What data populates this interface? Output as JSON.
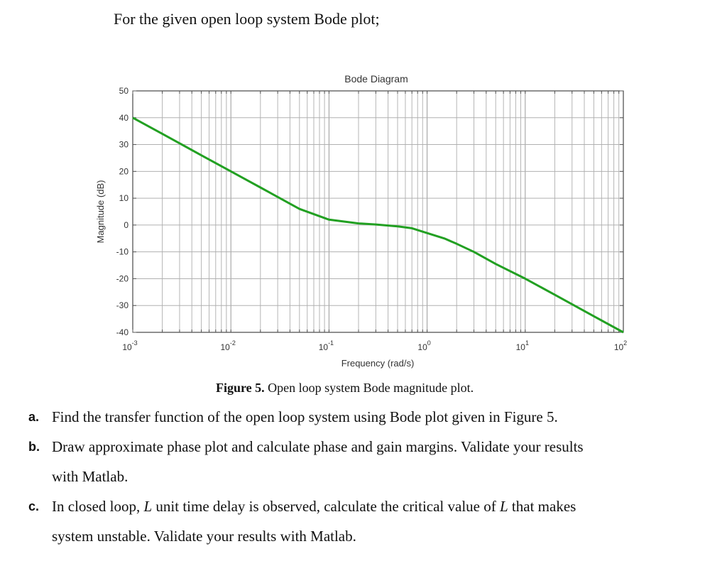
{
  "intro_text": "For the given open loop system Bode plot;",
  "chart_data": {
    "type": "line",
    "title": "Bode Diagram",
    "xlabel": "Frequency  (rad/s)",
    "ylabel": "Magnitude (dB)",
    "x_scale": "log",
    "xlim": [
      0.001,
      100
    ],
    "ylim": [
      -40,
      50
    ],
    "grid": true,
    "x_ticks": [
      {
        "value": 0.001,
        "base": "10",
        "exp": "-3"
      },
      {
        "value": 0.01,
        "base": "10",
        "exp": "-2"
      },
      {
        "value": 0.1,
        "base": "10",
        "exp": "-1"
      },
      {
        "value": 1,
        "base": "10",
        "exp": "0"
      },
      {
        "value": 10,
        "base": "10",
        "exp": "1"
      },
      {
        "value": 100,
        "base": "10",
        "exp": "2"
      }
    ],
    "y_ticks": [
      50,
      40,
      30,
      20,
      10,
      0,
      -10,
      -20,
      -30,
      -40
    ],
    "series": [
      {
        "color": "#22a022",
        "x": [
          0.001,
          0.002,
          0.005,
          0.01,
          0.02,
          0.05,
          0.1,
          0.2,
          0.3,
          0.5,
          0.7,
          1,
          1.5,
          2,
          3,
          5,
          10,
          20,
          50,
          100
        ],
        "y": [
          40,
          34,
          26,
          20,
          14,
          6,
          2,
          0.6,
          0.2,
          -0.5,
          -1.2,
          -3,
          -5,
          -7,
          -10,
          -14.5,
          -20,
          -26,
          -34,
          -40
        ]
      }
    ]
  },
  "caption": {
    "bold": "Figure 5.",
    "text": " Open loop system Bode magnitude plot."
  },
  "questions": [
    {
      "label": "a.",
      "text": "Find the transfer function of the open loop system using Bode plot given in Figure 5."
    },
    {
      "label": "b.",
      "line1": "Draw approximate phase plot and calculate phase and gain margins. Validate your results",
      "line2": "with Matlab."
    },
    {
      "label": "c.",
      "part1": "In closed loop, ",
      "var1": "L",
      "part2": " unit time delay is observed, calculate the critical value of ",
      "var2": "L",
      "part3": " that makes",
      "line2": "system unstable. Validate your results with Matlab."
    }
  ]
}
